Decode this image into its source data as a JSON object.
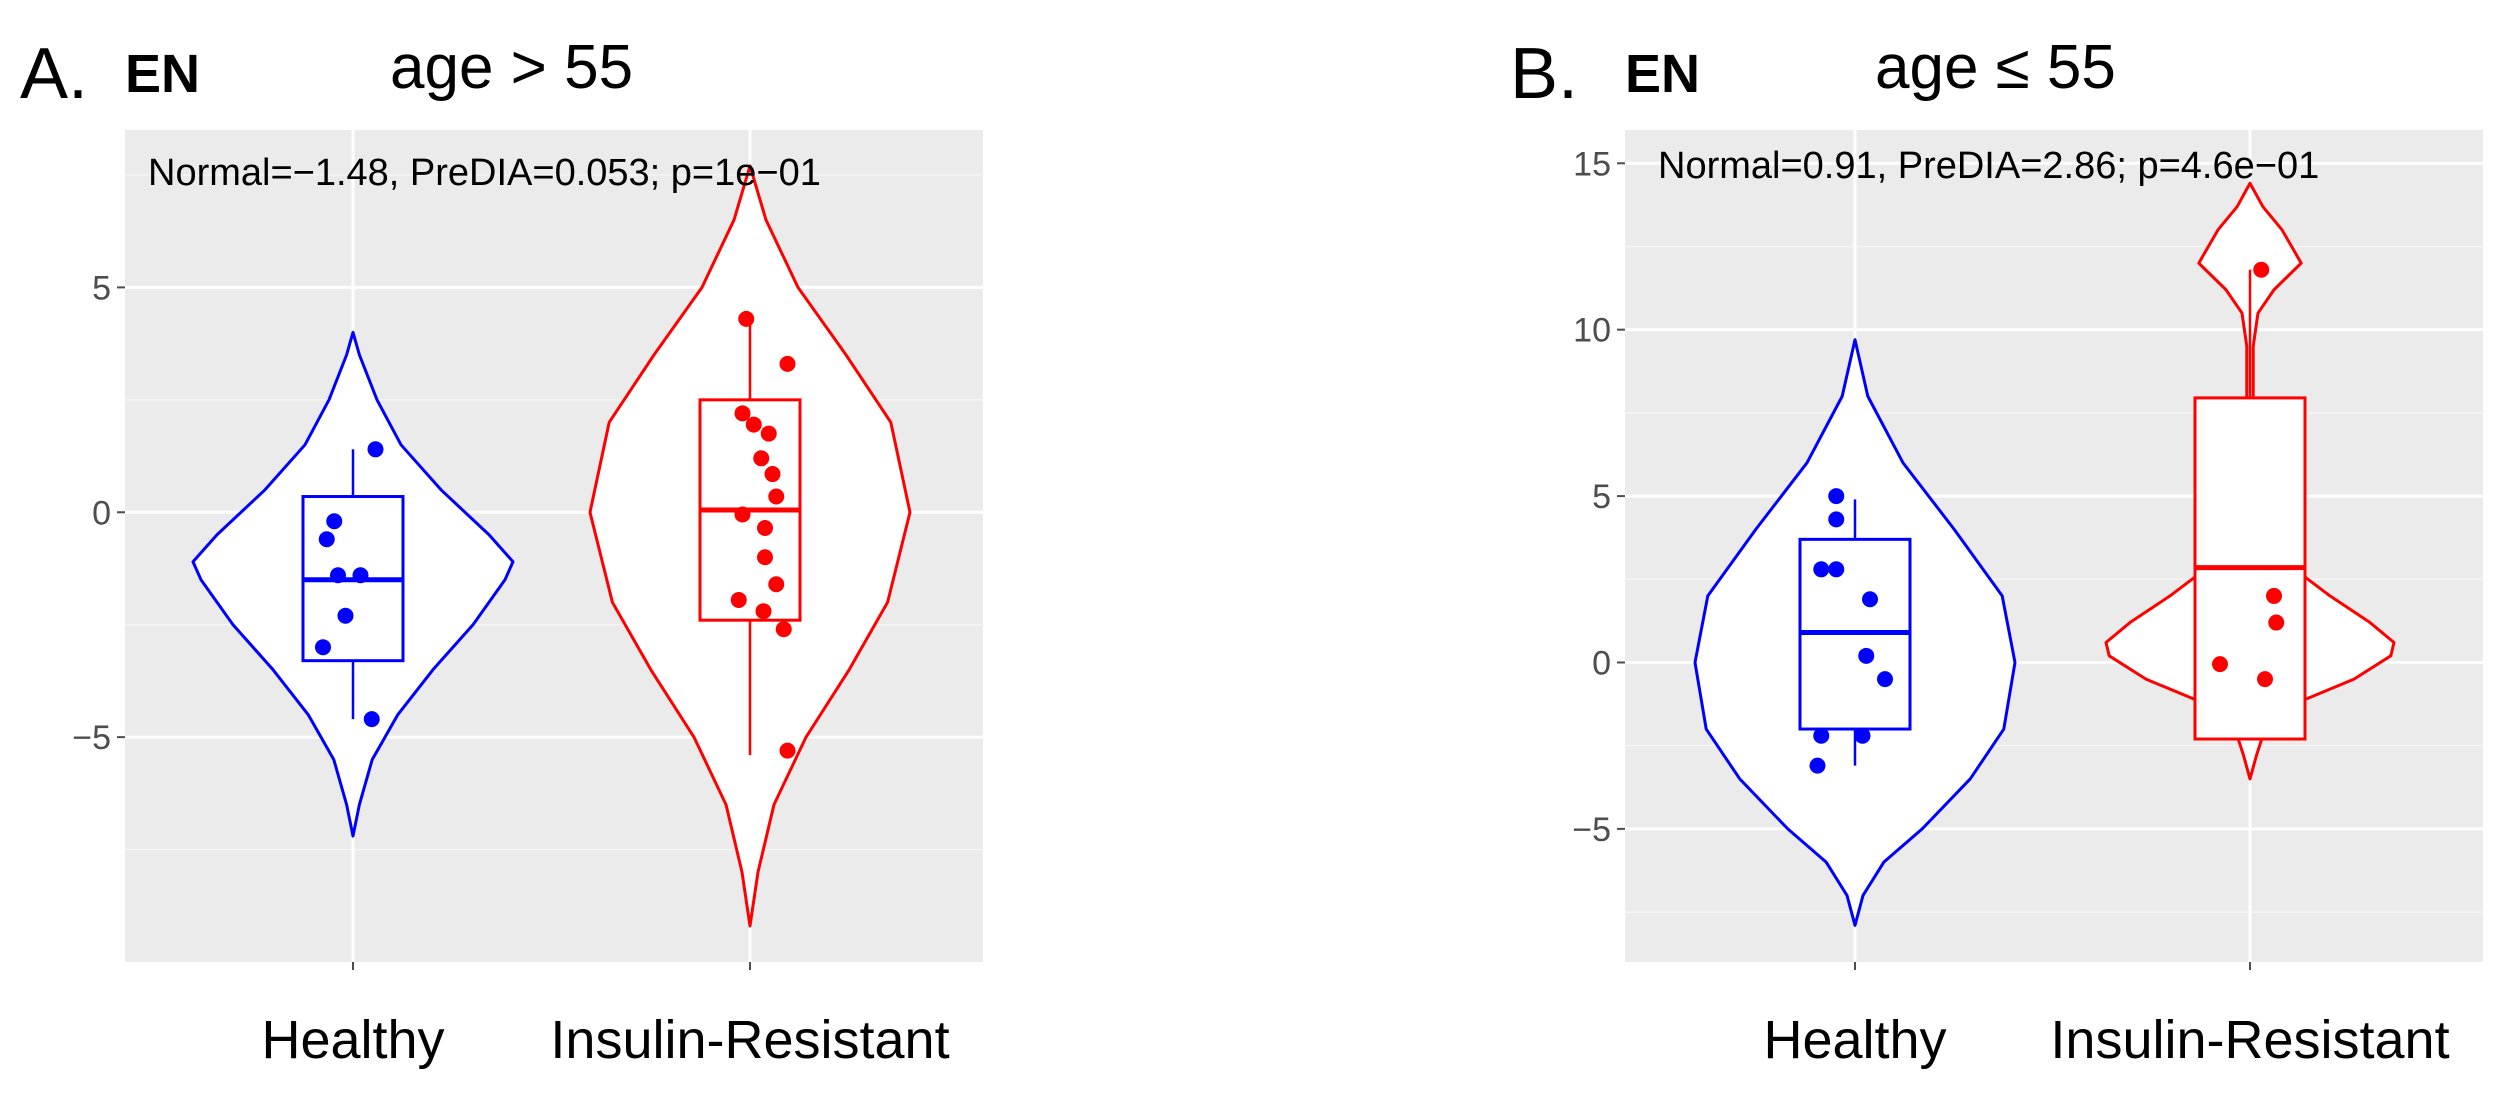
{
  "chart_data": [
    {
      "type": "violin",
      "panel_label": "A.",
      "gene": "EN",
      "subtitle": "age > 55",
      "annotation": "Normal=−1.48, PreDIA=0.053; p=1e−01",
      "categories": [
        "Healthy",
        "Insulin-Resistant"
      ],
      "ylim": [
        -10,
        8.5
      ],
      "yticks": [
        5,
        0,
        -5
      ],
      "ytick_labels": [
        "5",
        "0",
        "−5"
      ],
      "grid": true,
      "series": [
        {
          "name": "Healthy",
          "color": "#0000ff",
          "box": {
            "q1": -3.3,
            "median": -1.5,
            "q3": 0.35,
            "whisker_low": -4.6,
            "whisker_high": 1.4
          },
          "violin": [
            [
              -7.2,
              0
            ],
            [
              -6.5,
              0.04
            ],
            [
              -5.5,
              0.12
            ],
            [
              -4.5,
              0.28
            ],
            [
              -3.5,
              0.5
            ],
            [
              -2.5,
              0.75
            ],
            [
              -1.5,
              0.95
            ],
            [
              -1.1,
              1.0
            ],
            [
              -0.5,
              0.85
            ],
            [
              0.5,
              0.55
            ],
            [
              1.5,
              0.3
            ],
            [
              2.5,
              0.15
            ],
            [
              3.5,
              0.04
            ],
            [
              4.0,
              0
            ]
          ],
          "points": [
            [
              0.3,
              1.4
            ],
            [
              -0.25,
              -0.2
            ],
            [
              -0.35,
              -0.6
            ],
            [
              -0.2,
              -1.4
            ],
            [
              0.1,
              -1.4
            ],
            [
              -0.1,
              -2.3
            ],
            [
              -0.4,
              -3.0
            ],
            [
              0.25,
              -4.6
            ]
          ]
        },
        {
          "name": "Insulin-Resistant",
          "color": "#ff0000",
          "box": {
            "q1": -2.4,
            "median": 0.05,
            "q3": 2.5,
            "whisker_low": -5.4,
            "whisker_high": 4.3
          },
          "violin": [
            [
              -9.2,
              0
            ],
            [
              -8.0,
              0.05
            ],
            [
              -6.5,
              0.15
            ],
            [
              -5.0,
              0.35
            ],
            [
              -3.5,
              0.62
            ],
            [
              -2.0,
              0.86
            ],
            [
              0.0,
              1.0
            ],
            [
              2.0,
              0.88
            ],
            [
              3.5,
              0.6
            ],
            [
              5.0,
              0.3
            ],
            [
              6.5,
              0.1
            ],
            [
              7.7,
              0
            ]
          ],
          "points": [
            [
              -0.05,
              4.3
            ],
            [
              0.5,
              3.3
            ],
            [
              -0.1,
              2.2
            ],
            [
              0.05,
              1.95
            ],
            [
              0.25,
              1.75
            ],
            [
              0.15,
              1.2
            ],
            [
              0.3,
              0.85
            ],
            [
              0.35,
              0.35
            ],
            [
              0.2,
              -0.35
            ],
            [
              -0.1,
              -0.05
            ],
            [
              0.2,
              -1.0
            ],
            [
              0.35,
              -1.6
            ],
            [
              0.18,
              -2.2
            ],
            [
              -0.15,
              -1.95
            ],
            [
              0.45,
              -2.6
            ],
            [
              0.5,
              -5.3
            ]
          ]
        }
      ]
    },
    {
      "type": "violin",
      "panel_label": "B.",
      "gene": "EN",
      "subtitle": "age ≤ 55",
      "annotation": "Normal=0.91, PreDIA=2.86; p=4.6e−01",
      "categories": [
        "Healthy",
        "Insulin-Resistant"
      ],
      "ylim": [
        -9,
        16
      ],
      "yticks": [
        15,
        10,
        5,
        0,
        -5
      ],
      "ytick_labels": [
        "15",
        "10",
        "5",
        "0",
        "−5"
      ],
      "grid": true,
      "series": [
        {
          "name": "Healthy",
          "color": "#0000ff",
          "box": {
            "q1": -2.0,
            "median": 0.9,
            "q3": 3.7,
            "whisker_low": -3.1,
            "whisker_high": 4.9
          },
          "violin": [
            [
              -7.9,
              0
            ],
            [
              -7.0,
              0.05
            ],
            [
              -6.0,
              0.18
            ],
            [
              -5.0,
              0.42
            ],
            [
              -3.5,
              0.72
            ],
            [
              -2.0,
              0.93
            ],
            [
              0.0,
              1.0
            ],
            [
              2.0,
              0.92
            ],
            [
              4.0,
              0.62
            ],
            [
              6.0,
              0.3
            ],
            [
              8.0,
              0.08
            ],
            [
              9.7,
              0
            ]
          ],
          "points": [
            [
              -0.25,
              5.0
            ],
            [
              -0.25,
              4.3
            ],
            [
              -0.45,
              2.8
            ],
            [
              -0.25,
              2.8
            ],
            [
              0.2,
              1.9
            ],
            [
              0.15,
              0.2
            ],
            [
              0.4,
              -0.5
            ],
            [
              -0.45,
              -2.2
            ],
            [
              0.1,
              -2.2
            ],
            [
              -0.5,
              -3.1
            ]
          ]
        },
        {
          "name": "Insulin-Resistant",
          "color": "#ff0000",
          "box": {
            "q1": -2.3,
            "median": 2.85,
            "q3": 7.95,
            "whisker_low": -2.3,
            "whisker_high": 11.8
          },
          "violin": [
            [
              -3.5,
              0
            ],
            [
              -2.8,
              0.04
            ],
            [
              -2.2,
              0.08
            ],
            [
              -1.3,
              0.25
            ],
            [
              -0.5,
              0.65
            ],
            [
              0.2,
              0.88
            ],
            [
              0.6,
              0.9
            ],
            [
              1.2,
              0.75
            ],
            [
              2.0,
              0.5
            ],
            [
              2.8,
              0.28
            ],
            [
              3.8,
              0.08
            ],
            [
              5.0,
              0.03
            ],
            [
              7.0,
              0.02
            ],
            [
              9.5,
              0.02
            ],
            [
              10.5,
              0.05
            ],
            [
              11.2,
              0.15
            ],
            [
              12.0,
              0.32
            ],
            [
              13.0,
              0.2
            ],
            [
              13.7,
              0.08
            ],
            [
              14.4,
              0
            ]
          ],
          "points": [
            [
              0.15,
              11.8
            ],
            [
              0.32,
              2.0
            ],
            [
              0.35,
              1.2
            ],
            [
              -0.4,
              -0.05
            ],
            [
              0.2,
              -0.5
            ]
          ]
        }
      ]
    }
  ]
}
